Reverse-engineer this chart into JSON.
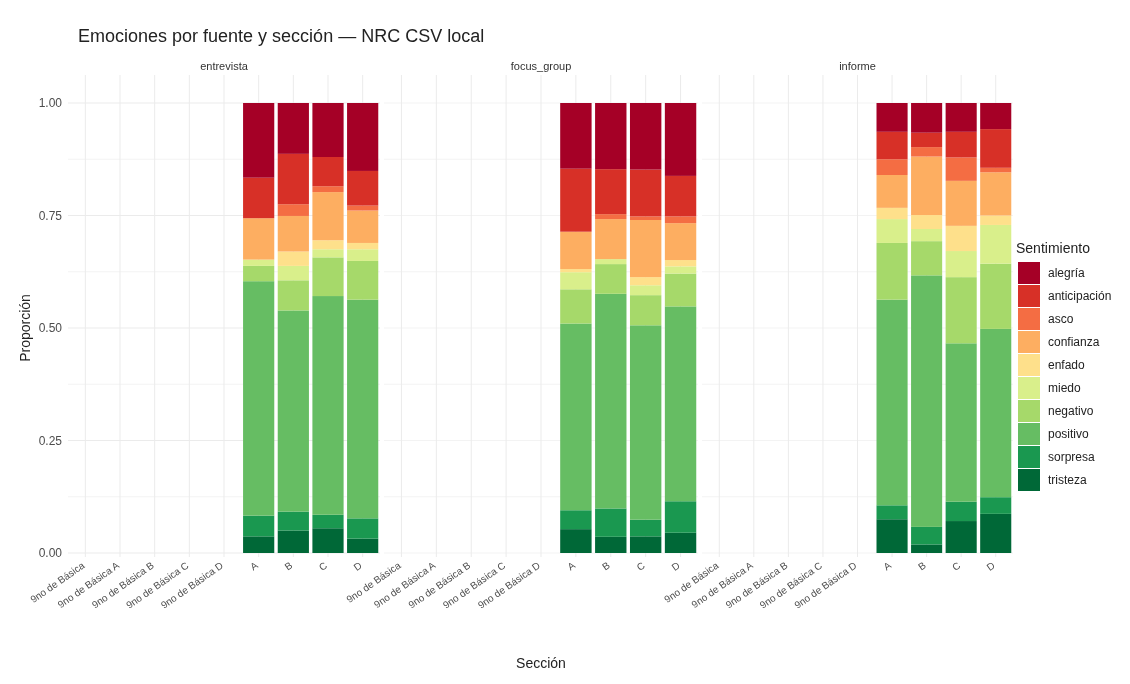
{
  "chart_data": [
    {
      "type": "bar",
      "stacked": true,
      "title": "Emociones por fuente y sección — NRC CSV local",
      "subtitle": "entrevista",
      "ylabel": "Proporción",
      "grid": true,
      "legend": false,
      "tick_labels": "xy",
      "categories": [
        "9no de Básica",
        "9no de Básica A",
        "9no de Básica B",
        "9no de Básica C",
        "9no de Básica D",
        "A",
        "B",
        "C",
        "D"
      ],
      "ylim": [
        0,
        1
      ],
      "yticks": [
        {
          "value": 0,
          "label": "0.00"
        },
        {
          "value": 0.125,
          "label": null
        },
        {
          "value": 0.25,
          "label": "0.25"
        },
        {
          "value": 0.375,
          "label": null
        },
        {
          "value": 0.5,
          "label": "0.50"
        },
        {
          "value": 0.625,
          "label": null
        },
        {
          "value": 0.75,
          "label": "0.75"
        },
        {
          "value": 0.875,
          "label": null
        },
        {
          "value": 1,
          "label": "1.00"
        }
      ],
      "series": [
        {
          "color": "#006837",
          "values": [
            null,
            null,
            null,
            null,
            null,
            0.037,
            0.05,
            0.055,
            0.032
          ]
        },
        {
          "color": "#1a9850",
          "values": [
            null,
            null,
            null,
            null,
            null,
            0.046,
            0.042,
            0.03,
            0.045
          ]
        },
        {
          "color": "#66bd63",
          "values": [
            null,
            null,
            null,
            null,
            null,
            0.521,
            0.447,
            0.486,
            0.486
          ]
        },
        {
          "color": "#a6d96a",
          "values": [
            null,
            null,
            null,
            null,
            null,
            0.034,
            0.067,
            0.086,
            0.086
          ]
        },
        {
          "color": "#d9ef8b",
          "values": [
            null,
            null,
            null,
            null,
            null,
            0.014,
            0.032,
            0.018,
            0.026
          ]
        },
        {
          "color": "#fee08b",
          "values": [
            null,
            null,
            null,
            null,
            null,
            0,
            0.032,
            0.02,
            0.014
          ]
        },
        {
          "color": "#fdae61",
          "values": [
            null,
            null,
            null,
            null,
            null,
            0.092,
            0.079,
            0.107,
            0.072
          ]
        },
        {
          "color": "#f46d43",
          "values": [
            null,
            null,
            null,
            null,
            null,
            0,
            0.026,
            0.013,
            0.011
          ]
        },
        {
          "color": "#d73027",
          "values": [
            null,
            null,
            null,
            null,
            null,
            0.09,
            0.112,
            0.065,
            0.077
          ]
        },
        {
          "color": "#a50026",
          "values": [
            null,
            null,
            null,
            null,
            null,
            0.166,
            0.113,
            0.12,
            0.151
          ]
        }
      ]
    },
    {
      "type": "bar",
      "stacked": true,
      "subtitle": "focus_group",
      "xlabel": "Sección",
      "grid": true,
      "legend": false,
      "tick_labels": "x",
      "categories": [
        "9no de Básica",
        "9no de Básica A",
        "9no de Básica B",
        "9no de Básica C",
        "9no de Básica D",
        "A",
        "B",
        "C",
        "D"
      ],
      "ylim": [
        0,
        1
      ],
      "yticks": [
        {
          "value": 0,
          "label": null
        },
        {
          "value": 0.125,
          "label": null
        },
        {
          "value": 0.25,
          "label": null
        },
        {
          "value": 0.375,
          "label": null
        },
        {
          "value": 0.5,
          "label": null
        },
        {
          "value": 0.625,
          "label": null
        },
        {
          "value": 0.75,
          "label": null
        },
        {
          "value": 0.875,
          "label": null
        },
        {
          "value": 1,
          "label": null
        }
      ],
      "series": [
        {
          "color": "#006837",
          "values": [
            null,
            null,
            null,
            null,
            null,
            0.053,
            0.036,
            0.037,
            0.045
          ]
        },
        {
          "color": "#1a9850",
          "values": [
            null,
            null,
            null,
            null,
            null,
            0.042,
            0.063,
            0.037,
            0.07
          ]
        },
        {
          "color": "#66bd63",
          "values": [
            null,
            null,
            null,
            null,
            null,
            0.415,
            0.477,
            0.432,
            0.433
          ]
        },
        {
          "color": "#a6d96a",
          "values": [
            null,
            null,
            null,
            null,
            null,
            0.076,
            0.066,
            0.067,
            0.073
          ]
        },
        {
          "color": "#d9ef8b",
          "values": [
            null,
            null,
            null,
            null,
            null,
            0.038,
            0.011,
            0.022,
            0.016
          ]
        },
        {
          "color": "#fee08b",
          "values": [
            null,
            null,
            null,
            null,
            null,
            0.007,
            0,
            0.018,
            0.014
          ]
        },
        {
          "color": "#fdae61",
          "values": [
            null,
            null,
            null,
            null,
            null,
            0.083,
            0.089,
            0.127,
            0.082
          ]
        },
        {
          "color": "#f46d43",
          "values": [
            null,
            null,
            null,
            null,
            null,
            0,
            0.011,
            0.008,
            0.015
          ]
        },
        {
          "color": "#d73027",
          "values": [
            null,
            null,
            null,
            null,
            null,
            0.14,
            0.1,
            0.104,
            0.09
          ]
        },
        {
          "color": "#a50026",
          "values": [
            null,
            null,
            null,
            null,
            null,
            0.146,
            0.147,
            0.148,
            0.162
          ]
        }
      ]
    },
    {
      "type": "bar",
      "stacked": true,
      "subtitle": "informe",
      "legend_title": "Sentimiento",
      "grid": true,
      "legend": "right",
      "tick_labels": "x",
      "categories": [
        "9no de Básica",
        "9no de Básica A",
        "9no de Básica B",
        "9no de Básica C",
        "9no de Básica D",
        "A",
        "B",
        "C",
        "D"
      ],
      "ylim": [
        0,
        1
      ],
      "yticks": [
        {
          "value": 0,
          "label": null
        },
        {
          "value": 0.125,
          "label": null
        },
        {
          "value": 0.25,
          "label": null
        },
        {
          "value": 0.375,
          "label": null
        },
        {
          "value": 0.5,
          "label": null
        },
        {
          "value": 0.625,
          "label": null
        },
        {
          "value": 0.75,
          "label": null
        },
        {
          "value": 0.875,
          "label": null
        },
        {
          "value": 1,
          "label": null
        }
      ],
      "series": [
        {
          "name": "tristeza",
          "color": "#006837",
          "values": [
            null,
            null,
            null,
            null,
            null,
            0.075,
            0.019,
            0.071,
            0.087
          ]
        },
        {
          "name": "sorpresa",
          "color": "#1a9850",
          "values": [
            null,
            null,
            null,
            null,
            null,
            0.031,
            0.039,
            0.043,
            0.037
          ]
        },
        {
          "name": "positivo",
          "color": "#66bd63",
          "values": [
            null,
            null,
            null,
            null,
            null,
            0.457,
            0.559,
            0.352,
            0.374
          ]
        },
        {
          "name": "negativo",
          "color": "#a6d96a",
          "values": [
            null,
            null,
            null,
            null,
            null,
            0.126,
            0.076,
            0.147,
            0.145
          ]
        },
        {
          "name": "miedo",
          "color": "#d9ef8b",
          "values": [
            null,
            null,
            null,
            null,
            null,
            0.053,
            0.027,
            0.058,
            0.086
          ]
        },
        {
          "name": "enfado",
          "color": "#fee08b",
          "values": [
            null,
            null,
            null,
            null,
            null,
            0.025,
            0.031,
            0.056,
            0.021
          ]
        },
        {
          "name": "confianza",
          "color": "#fdae61",
          "values": [
            null,
            null,
            null,
            null,
            null,
            0.073,
            0.13,
            0.1,
            0.096
          ]
        },
        {
          "name": "asco",
          "color": "#f46d43",
          "values": [
            null,
            null,
            null,
            null,
            null,
            0.035,
            0.021,
            0.052,
            0.01
          ]
        },
        {
          "name": "anticipación",
          "color": "#d73027",
          "values": [
            null,
            null,
            null,
            null,
            null,
            0.061,
            0.032,
            0.057,
            0.086
          ]
        },
        {
          "name": "alegría",
          "color": "#a50026",
          "values": [
            null,
            null,
            null,
            null,
            null,
            0.064,
            0.066,
            0.064,
            0.058
          ]
        }
      ]
    }
  ]
}
